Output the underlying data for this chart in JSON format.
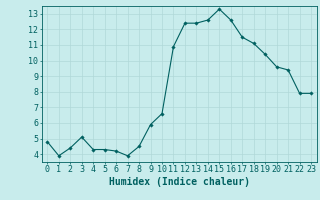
{
  "x": [
    0,
    1,
    2,
    3,
    4,
    5,
    6,
    7,
    8,
    9,
    10,
    11,
    12,
    13,
    14,
    15,
    16,
    17,
    18,
    19,
    20,
    21,
    22,
    23
  ],
  "y": [
    4.8,
    3.9,
    4.4,
    5.1,
    4.3,
    4.3,
    4.2,
    3.9,
    4.5,
    5.9,
    6.6,
    10.9,
    12.4,
    12.4,
    12.6,
    13.3,
    12.6,
    11.5,
    11.1,
    10.4,
    9.6,
    9.4,
    7.9,
    7.9
  ],
  "xlabel": "Humidex (Indice chaleur)",
  "ylim": [
    3.5,
    13.5
  ],
  "xlim": [
    -0.5,
    23.5
  ],
  "yticks": [
    4,
    5,
    6,
    7,
    8,
    9,
    10,
    11,
    12,
    13
  ],
  "xticks": [
    0,
    1,
    2,
    3,
    4,
    5,
    6,
    7,
    8,
    9,
    10,
    11,
    12,
    13,
    14,
    15,
    16,
    17,
    18,
    19,
    20,
    21,
    22,
    23
  ],
  "line_color": "#006060",
  "marker": "D",
  "marker_size": 1.8,
  "bg_color": "#c8ecec",
  "grid_color": "#b0d8d8",
  "axis_color": "#006060",
  "tick_label_color": "#006060",
  "xlabel_color": "#006060",
  "xlabel_fontsize": 7,
  "tick_fontsize": 6
}
